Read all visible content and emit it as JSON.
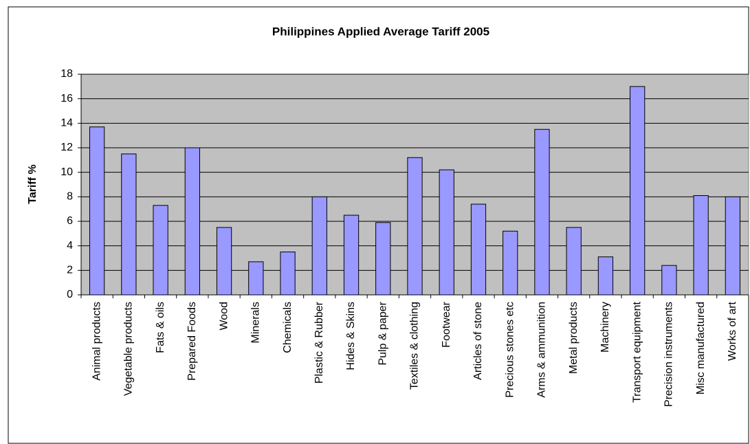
{
  "chart_data": {
    "type": "bar",
    "title": "Philippines Applied Average Tariff 2005",
    "y_label": "Tariff %",
    "categories": [
      "Animal products",
      "Vegetable products",
      "Fats & oils",
      "Prepared Foods",
      "Wood",
      "Minerals",
      "Chemicals",
      "Plastic & Rubber",
      "Hides & Skins",
      "Pulp & paper",
      "Textiles & clothing",
      "Footwear",
      "Articles of stone",
      "Precious stones etc",
      "Arms & ammunition",
      "Metal products",
      "Machinery",
      "Transport equipment",
      "Precision instruments",
      "Misc manufactured",
      "Works of art"
    ],
    "values": [
      13.7,
      11.5,
      7.3,
      12.0,
      5.5,
      2.7,
      3.5,
      8.0,
      6.5,
      5.9,
      11.2,
      10.2,
      7.4,
      5.2,
      13.5,
      5.5,
      3.1,
      17.0,
      2.4,
      8.1,
      8.0
    ],
    "color": "#9999ff",
    "ylim": [
      0,
      18
    ],
    "yticks": [
      0,
      2,
      4,
      6,
      8,
      10,
      12,
      14,
      16,
      18
    ],
    "grid": true
  }
}
